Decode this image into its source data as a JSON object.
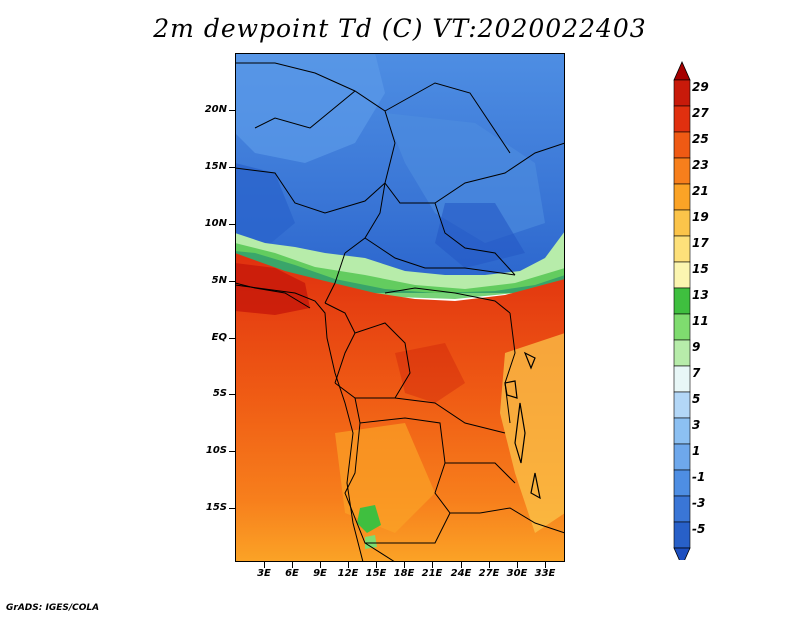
{
  "title": "2m dewpoint Td (C) VT:2020022403",
  "footer": "GrADS: IGES/COLA",
  "lat_labels": [
    "20N",
    "15N",
    "10N",
    "5N",
    "EQ",
    "5S",
    "10S",
    "15S"
  ],
  "lon_labels": [
    "3E",
    "6E",
    "9E",
    "12E",
    "15E",
    "18E",
    "21E",
    "24E",
    "27E",
    "30E",
    "33E"
  ],
  "colorbar": {
    "labels": [
      "29",
      "27",
      "25",
      "23",
      "21",
      "19",
      "17",
      "15",
      "13",
      "11",
      "9",
      "7",
      "5",
      "3",
      "1",
      "-1",
      "-3",
      "-5"
    ],
    "colors": [
      "#a50000",
      "#c81a0a",
      "#e0300f",
      "#ef5a14",
      "#f77f1c",
      "#fba326",
      "#fbc44a",
      "#fde07a",
      "#fbf5b0",
      "#3fbf3f",
      "#7fdc6f",
      "#b7ecaa",
      "#e8f7f7",
      "#b3d7f7",
      "#8cc0f2",
      "#6ea8ec",
      "#4e8ee3",
      "#3a76d6",
      "#2860c8",
      "#1d4fc0"
    ]
  }
}
